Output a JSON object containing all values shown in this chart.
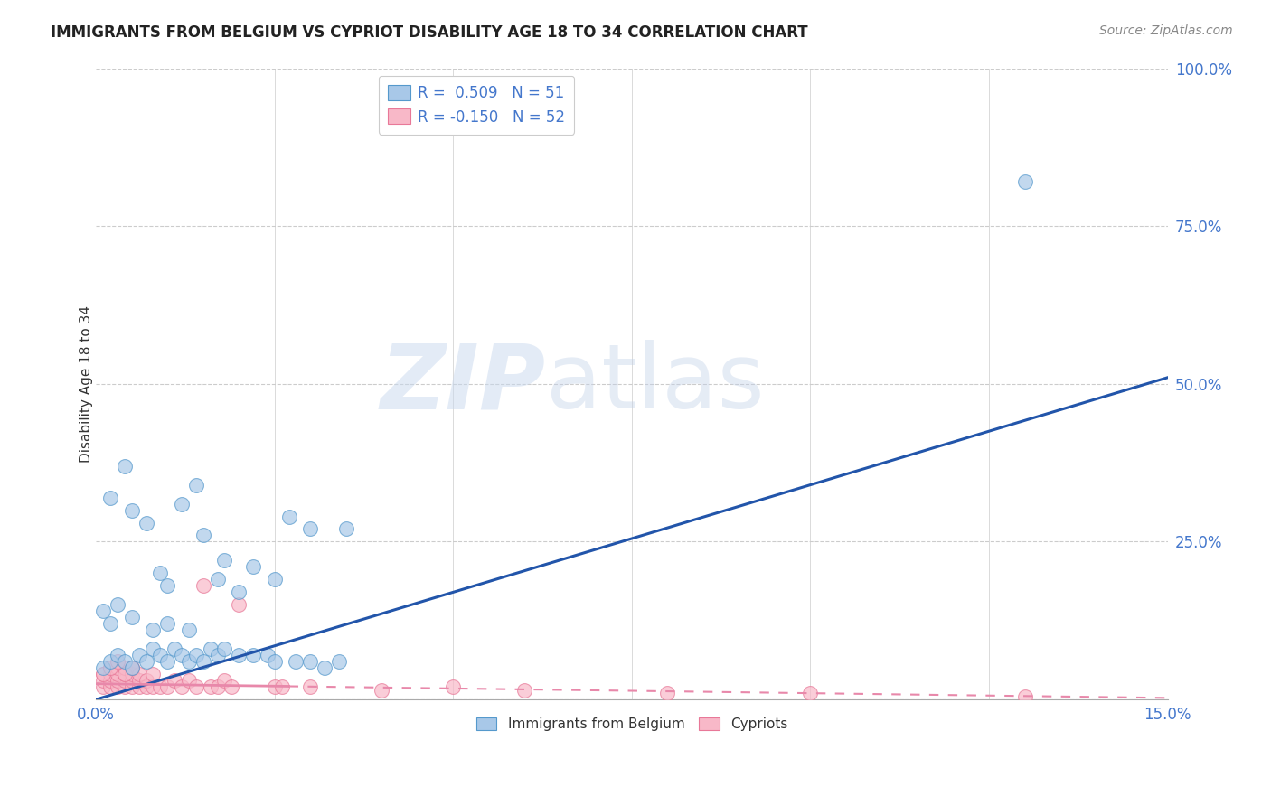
{
  "title": "IMMIGRANTS FROM BELGIUM VS CYPRIOT DISABILITY AGE 18 TO 34 CORRELATION CHART",
  "source": "Source: ZipAtlas.com",
  "ylabel_label": "Disability Age 18 to 34",
  "xlim": [
    0.0,
    0.15
  ],
  "ylim": [
    0.0,
    1.0
  ],
  "legend1_label": "R =  0.509   N = 51",
  "legend2_label": "R = -0.150   N = 52",
  "legend_bottom_label1": "Immigrants from Belgium",
  "legend_bottom_label2": "Cypriots",
  "blue_color": "#a8c8e8",
  "blue_edge_color": "#5599cc",
  "pink_color": "#f8b8c8",
  "pink_edge_color": "#e87898",
  "blue_line_color": "#2255aa",
  "pink_line_color": "#e888aa",
  "axis_label_color": "#4477cc",
  "title_color": "#222222",
  "source_color": "#888888",
  "grid_color": "#cccccc",
  "blue_line_intercept": 0.0,
  "blue_line_slope": 3.4,
  "pink_line_intercept": 0.025,
  "pink_line_slope": -0.15,
  "blue_scatter_x": [
    0.002,
    0.004,
    0.005,
    0.007,
    0.009,
    0.01,
    0.012,
    0.014,
    0.015,
    0.017,
    0.018,
    0.02,
    0.022,
    0.025,
    0.027,
    0.03,
    0.001,
    0.002,
    0.003,
    0.004,
    0.005,
    0.006,
    0.007,
    0.008,
    0.009,
    0.01,
    0.011,
    0.012,
    0.013,
    0.014,
    0.015,
    0.016,
    0.017,
    0.018,
    0.02,
    0.022,
    0.024,
    0.025,
    0.028,
    0.03,
    0.032,
    0.034,
    0.001,
    0.002,
    0.003,
    0.005,
    0.008,
    0.01,
    0.013,
    0.035,
    0.13
  ],
  "blue_scatter_y": [
    0.32,
    0.37,
    0.3,
    0.28,
    0.2,
    0.18,
    0.31,
    0.34,
    0.26,
    0.19,
    0.22,
    0.17,
    0.21,
    0.19,
    0.29,
    0.27,
    0.05,
    0.06,
    0.07,
    0.06,
    0.05,
    0.07,
    0.06,
    0.08,
    0.07,
    0.06,
    0.08,
    0.07,
    0.06,
    0.07,
    0.06,
    0.08,
    0.07,
    0.08,
    0.07,
    0.07,
    0.07,
    0.06,
    0.06,
    0.06,
    0.05,
    0.06,
    0.14,
    0.12,
    0.15,
    0.13,
    0.11,
    0.12,
    0.11,
    0.27,
    0.82
  ],
  "pink_scatter_x": [
    0.001,
    0.001,
    0.001,
    0.002,
    0.002,
    0.002,
    0.002,
    0.003,
    0.003,
    0.003,
    0.003,
    0.004,
    0.004,
    0.004,
    0.004,
    0.005,
    0.005,
    0.005,
    0.005,
    0.006,
    0.006,
    0.006,
    0.007,
    0.007,
    0.008,
    0.008,
    0.009,
    0.01,
    0.011,
    0.012,
    0.013,
    0.014,
    0.015,
    0.016,
    0.017,
    0.018,
    0.019,
    0.02,
    0.025,
    0.026,
    0.001,
    0.002,
    0.003,
    0.004,
    0.005,
    0.03,
    0.04,
    0.05,
    0.06,
    0.08,
    0.1,
    0.13
  ],
  "pink_scatter_y": [
    0.02,
    0.03,
    0.04,
    0.02,
    0.03,
    0.04,
    0.05,
    0.02,
    0.03,
    0.04,
    0.05,
    0.02,
    0.03,
    0.04,
    0.05,
    0.02,
    0.03,
    0.04,
    0.05,
    0.02,
    0.03,
    0.04,
    0.02,
    0.03,
    0.02,
    0.04,
    0.02,
    0.02,
    0.03,
    0.02,
    0.03,
    0.02,
    0.18,
    0.02,
    0.02,
    0.03,
    0.02,
    0.15,
    0.02,
    0.02,
    0.04,
    0.05,
    0.06,
    0.04,
    0.05,
    0.02,
    0.015,
    0.02,
    0.015,
    0.01,
    0.01,
    0.005
  ]
}
